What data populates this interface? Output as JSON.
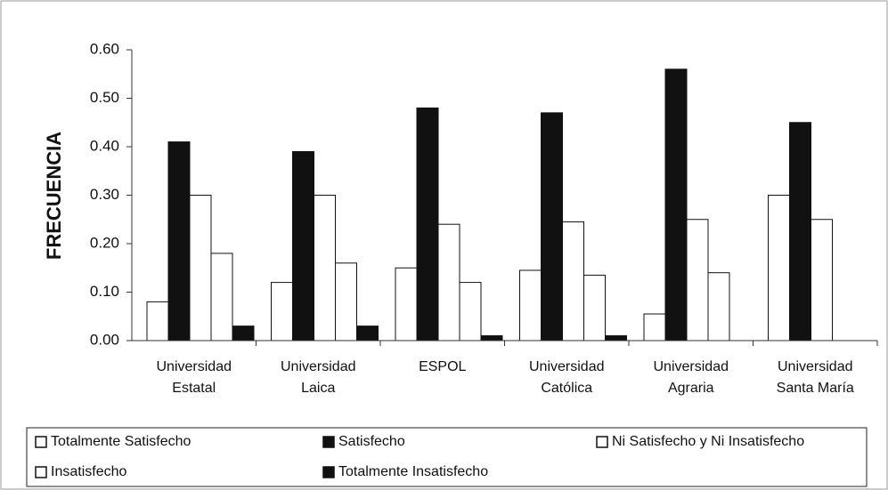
{
  "chart_data": {
    "type": "bar",
    "y_label": "FRECUENCIA",
    "categories": [
      [
        "Universidad",
        "Estatal"
      ],
      [
        "Universidad",
        "Laica"
      ],
      [
        "ESPOL"
      ],
      [
        "Universidad",
        "Católica"
      ],
      [
        "Universidad",
        "Agraria"
      ],
      [
        "Universidad",
        "Santa María"
      ]
    ],
    "series": [
      {
        "name": "Totalmente Satisfecho",
        "color": "#ffffff",
        "values": [
          0.08,
          0.12,
          0.15,
          0.145,
          0.055,
          0.3
        ]
      },
      {
        "name": "Satisfecho",
        "color": "#111111",
        "values": [
          0.41,
          0.39,
          0.48,
          0.47,
          0.56,
          0.45
        ]
      },
      {
        "name": "Ni Satisfecho y Ni Insatisfecho",
        "color": "#ffffff",
        "values": [
          0.3,
          0.3,
          0.24,
          0.245,
          0.25,
          0.25
        ]
      },
      {
        "name": "Insatisfecho",
        "color": "#ffffff",
        "values": [
          0.18,
          0.16,
          0.12,
          0.135,
          0.14,
          0
        ]
      },
      {
        "name": "Totalmente Insatisfecho",
        "color": "#111111",
        "values": [
          0.03,
          0.03,
          0.01,
          0.01,
          0,
          0
        ]
      }
    ],
    "ylim": [
      0,
      0.6
    ],
    "yticks": [
      {
        "value": 0,
        "label": "0.00"
      },
      {
        "value": 0.1,
        "label": "0.10"
      },
      {
        "value": 0.2,
        "label": "0.20"
      },
      {
        "value": 0.3,
        "label": "0.30"
      },
      {
        "value": 0.4,
        "label": "0.40"
      },
      {
        "value": 0.5,
        "label": "0.50"
      },
      {
        "value": 0.6,
        "label": "0.60"
      }
    ],
    "legend": "bottom"
  }
}
